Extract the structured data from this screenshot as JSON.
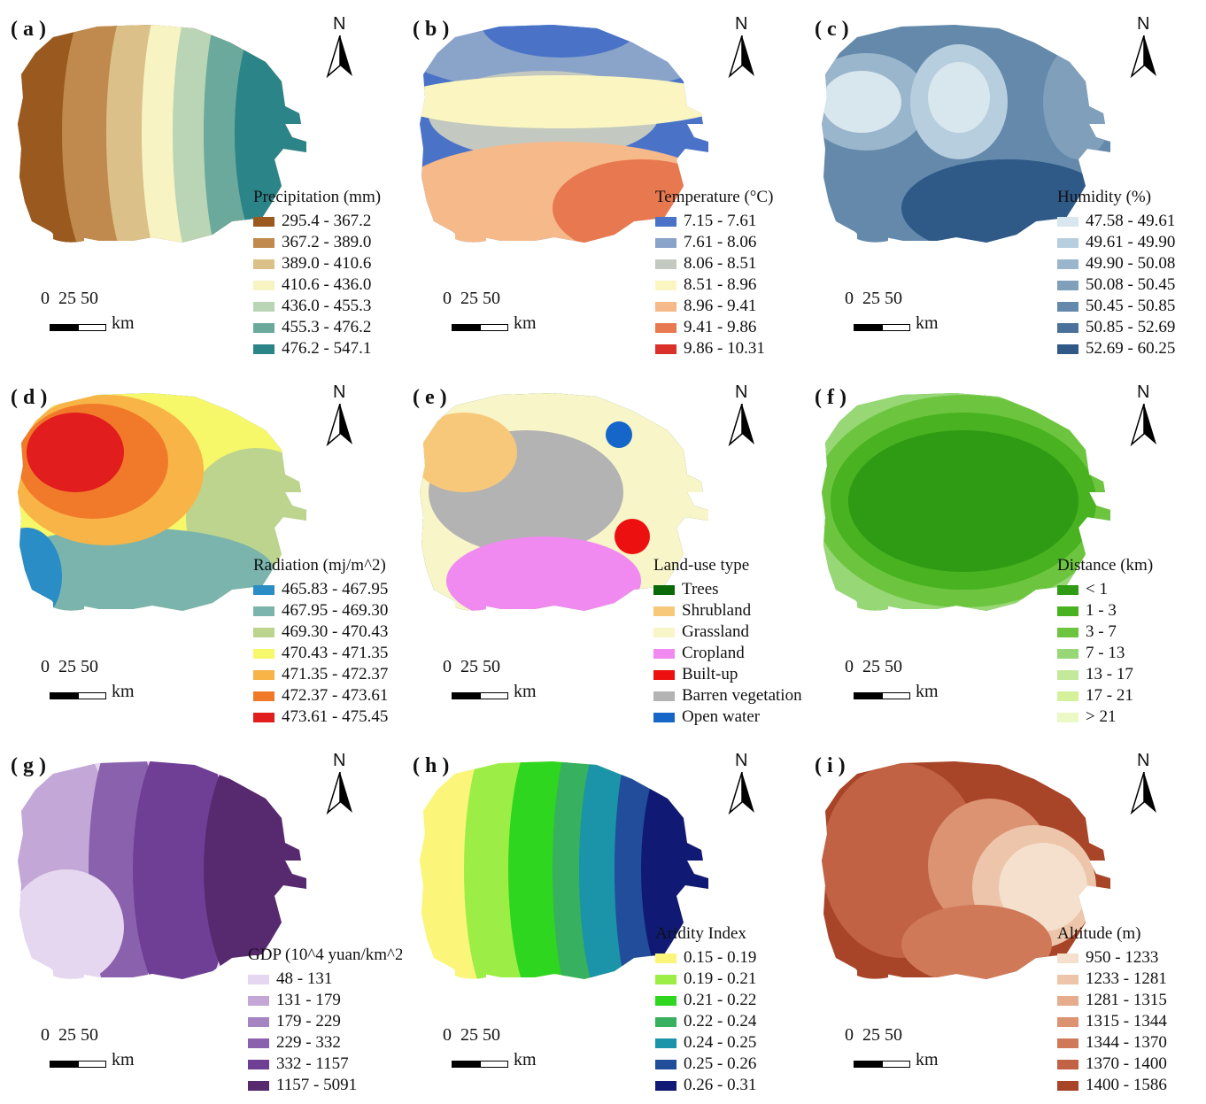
{
  "north_label": "N",
  "scale": {
    "numbers": "0  25 50",
    "unit": "km"
  },
  "panels": [
    {
      "label": "( a )",
      "legend_title": "Precipitation (mm)",
      "classes": [
        "295.4 - 367.2",
        "367.2 - 389.0",
        "389.0 - 410.6",
        "410.6 - 436.0",
        "436.0 - 455.3",
        "455.3 - 476.2",
        "476.2 - 547.1"
      ],
      "colors": [
        "#9a5a1f",
        "#c08a4e",
        "#dcc08a",
        "#f7f3c2",
        "#b9d5b6",
        "#6aa99b",
        "#2b8488"
      ]
    },
    {
      "label": "( b )",
      "legend_title": "Temperature (°C)",
      "classes": [
        "7.15 - 7.61",
        "7.61 - 8.06",
        "8.06 - 8.51",
        "8.51 - 8.96",
        "8.96 - 9.41",
        "9.41 - 9.86",
        "9.86 - 10.31"
      ],
      "colors": [
        "#4a73c8",
        "#8aa3c9",
        "#c3c8c0",
        "#fbf6c1",
        "#f6b98a",
        "#e8784f",
        "#d9302a"
      ]
    },
    {
      "label": "( c )",
      "legend_title": "Humidity (%)",
      "classes": [
        "47.58 - 49.61",
        "49.61 - 49.90",
        "49.90 - 50.08",
        "50.08 - 50.45",
        "50.45 - 50.85",
        "50.85 - 52.69",
        "52.69 - 60.25"
      ],
      "colors": [
        "#d8e6ee",
        "#b7cede",
        "#9ab6cc",
        "#7f9fbb",
        "#6489ab",
        "#4a719b",
        "#2f5a88"
      ]
    },
    {
      "label": "( d )",
      "legend_title": "Radiation (mj/m^2)",
      "classes": [
        "465.83 - 467.95",
        "467.95 - 469.30",
        "469.30 - 470.43",
        "470.43 - 471.35",
        "471.35 - 472.37",
        "472.37 - 473.61",
        "473.61 - 475.45"
      ],
      "colors": [
        "#2a8dc6",
        "#7ab4ad",
        "#bcd48e",
        "#f7f76a",
        "#f8b447",
        "#f17a2a",
        "#e21d1d"
      ]
    },
    {
      "label": "( e )",
      "legend_title": "Land-use type",
      "classes": [
        "Trees",
        "Shrubland",
        "Grassland",
        "Cropland",
        "Built-up",
        "Barren vegetation",
        "Open water"
      ],
      "colors": [
        "#0a6a0a",
        "#f8c87a",
        "#f8f5c8",
        "#f08af0",
        "#ec1010",
        "#b3b3b3",
        "#1566c8"
      ]
    },
    {
      "label": "( f )",
      "legend_title": "Distance (km)",
      "classes": [
        "< 1",
        "1 - 3",
        "3 - 7",
        "7 - 13",
        "13 - 17",
        "17 - 21",
        "> 21"
      ],
      "colors": [
        "#2f9a14",
        "#48b220",
        "#6dc53f",
        "#98d776",
        "#c2ea9a",
        "#d5f29a",
        "#eaf9c5"
      ]
    },
    {
      "label": "( g )",
      "legend_title": "GDP (10^4 yuan/km^2)",
      "classes": [
        "48 - 131",
        "131 - 179",
        "179 - 229",
        "229 - 332",
        "332 - 1157",
        "1157 - 5091"
      ],
      "colors": [
        "#e5d7ef",
        "#c3a7d6",
        "#a585c1",
        "#8a61ad",
        "#6e3f95",
        "#57296f"
      ]
    },
    {
      "label": "( h )",
      "legend_title": "Aridity Index",
      "classes": [
        "0.15 - 0.19",
        "0.19 - 0.21",
        "0.21 - 0.22",
        "0.22 - 0.24",
        "0.24 - 0.25",
        "0.25 - 0.26",
        "0.26 - 0.31"
      ],
      "colors": [
        "#fbf579",
        "#9cee47",
        "#2fd61f",
        "#37b05f",
        "#1b93a8",
        "#214d9a",
        "#101a74"
      ]
    },
    {
      "label": "( i )",
      "legend_title": "Altitude (m)",
      "classes": [
        "950 - 1233",
        "1233 - 1281",
        "1281 - 1315",
        "1315 - 1344",
        "1344 - 1370",
        "1370 - 1400",
        "1400 - 1586"
      ],
      "colors": [
        "#f4e0cc",
        "#edc5aa",
        "#e5ad8e",
        "#dc9372",
        "#cf7959",
        "#c16245",
        "#a84428"
      ]
    }
  ]
}
